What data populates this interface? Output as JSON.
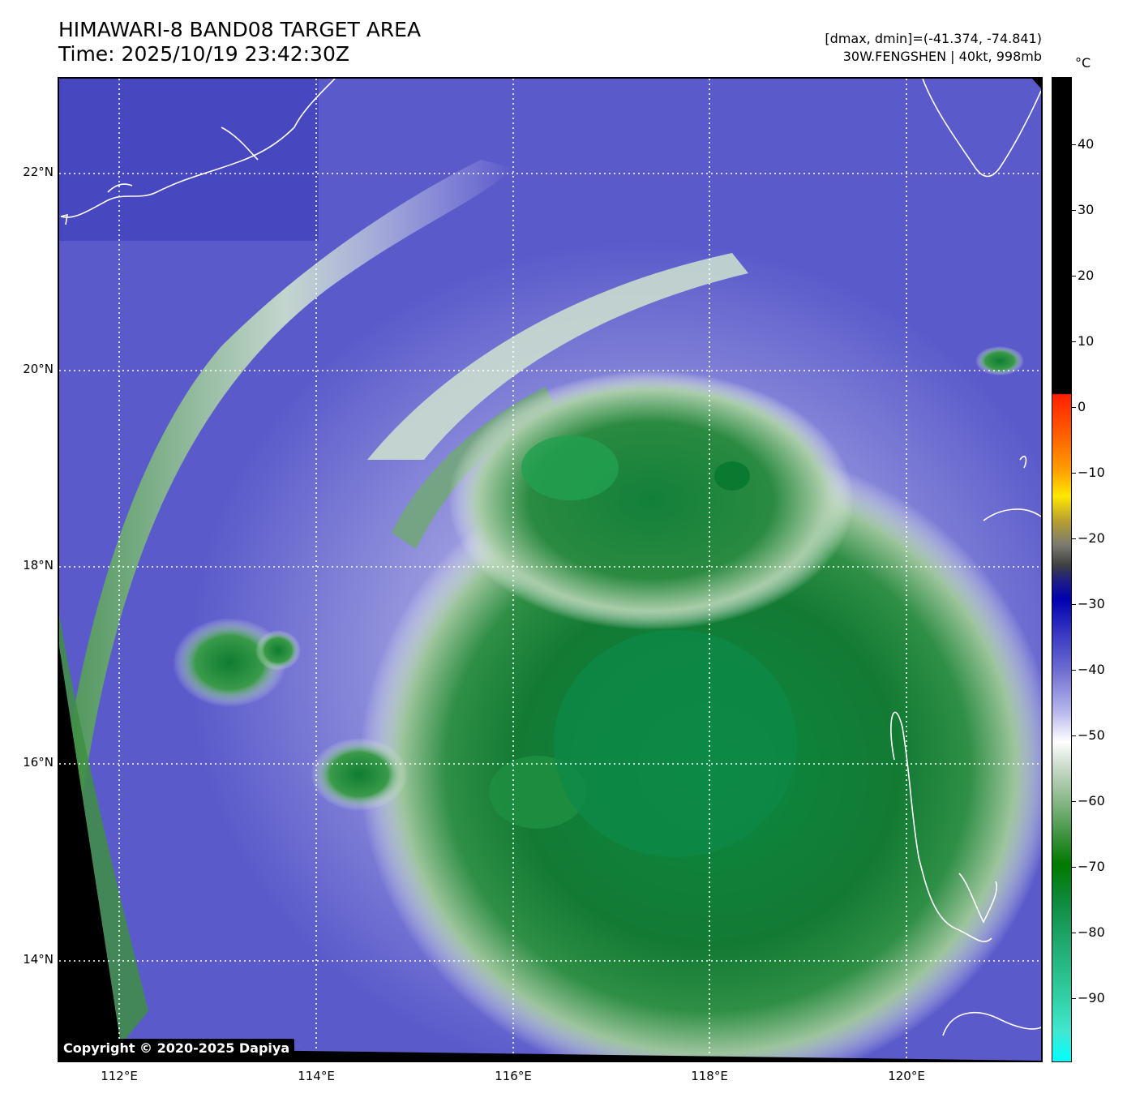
{
  "title": {
    "line1": "HIMAWARI-8 BAND08 TARGET AREA",
    "line2": "Time: 2025/10/19 23:42:30Z"
  },
  "meta": {
    "line1": "[dmax, dmin]=(-41.374, -74.841)",
    "line2": "30W.FENGSHEN | 40kt, 998mb"
  },
  "latitude_labels": [
    "22°N",
    "20°N",
    "18°N",
    "16°N",
    "14°N"
  ],
  "longitude_labels": [
    "112°E",
    "114°E",
    "116°E",
    "118°E",
    "120°E"
  ],
  "colorbar": {
    "unit": "°C",
    "tick_labels": [
      "40",
      "30",
      "20",
      "10",
      "0",
      "−10",
      "−20",
      "−30",
      "−40",
      "−50",
      "−60",
      "−70",
      "−80",
      "−90"
    ],
    "colors": {
      "warm": "#000000",
      "red": "#ff2000",
      "yellow": "#ffe800",
      "gray": "#404040",
      "dark_blue": "#0000b0",
      "blue": "#6a6ad0",
      "white": "#ffffff",
      "green": "#007a00",
      "cyan": "#00ffff"
    }
  },
  "map": {
    "background_color": "#5a5acb",
    "cold_cloud_color": "#0d7d34",
    "coastline_color": "#ffffff",
    "gridline_color": "#ffffff"
  },
  "copyright": "Copyright © 2020-2025 Dapiya"
}
